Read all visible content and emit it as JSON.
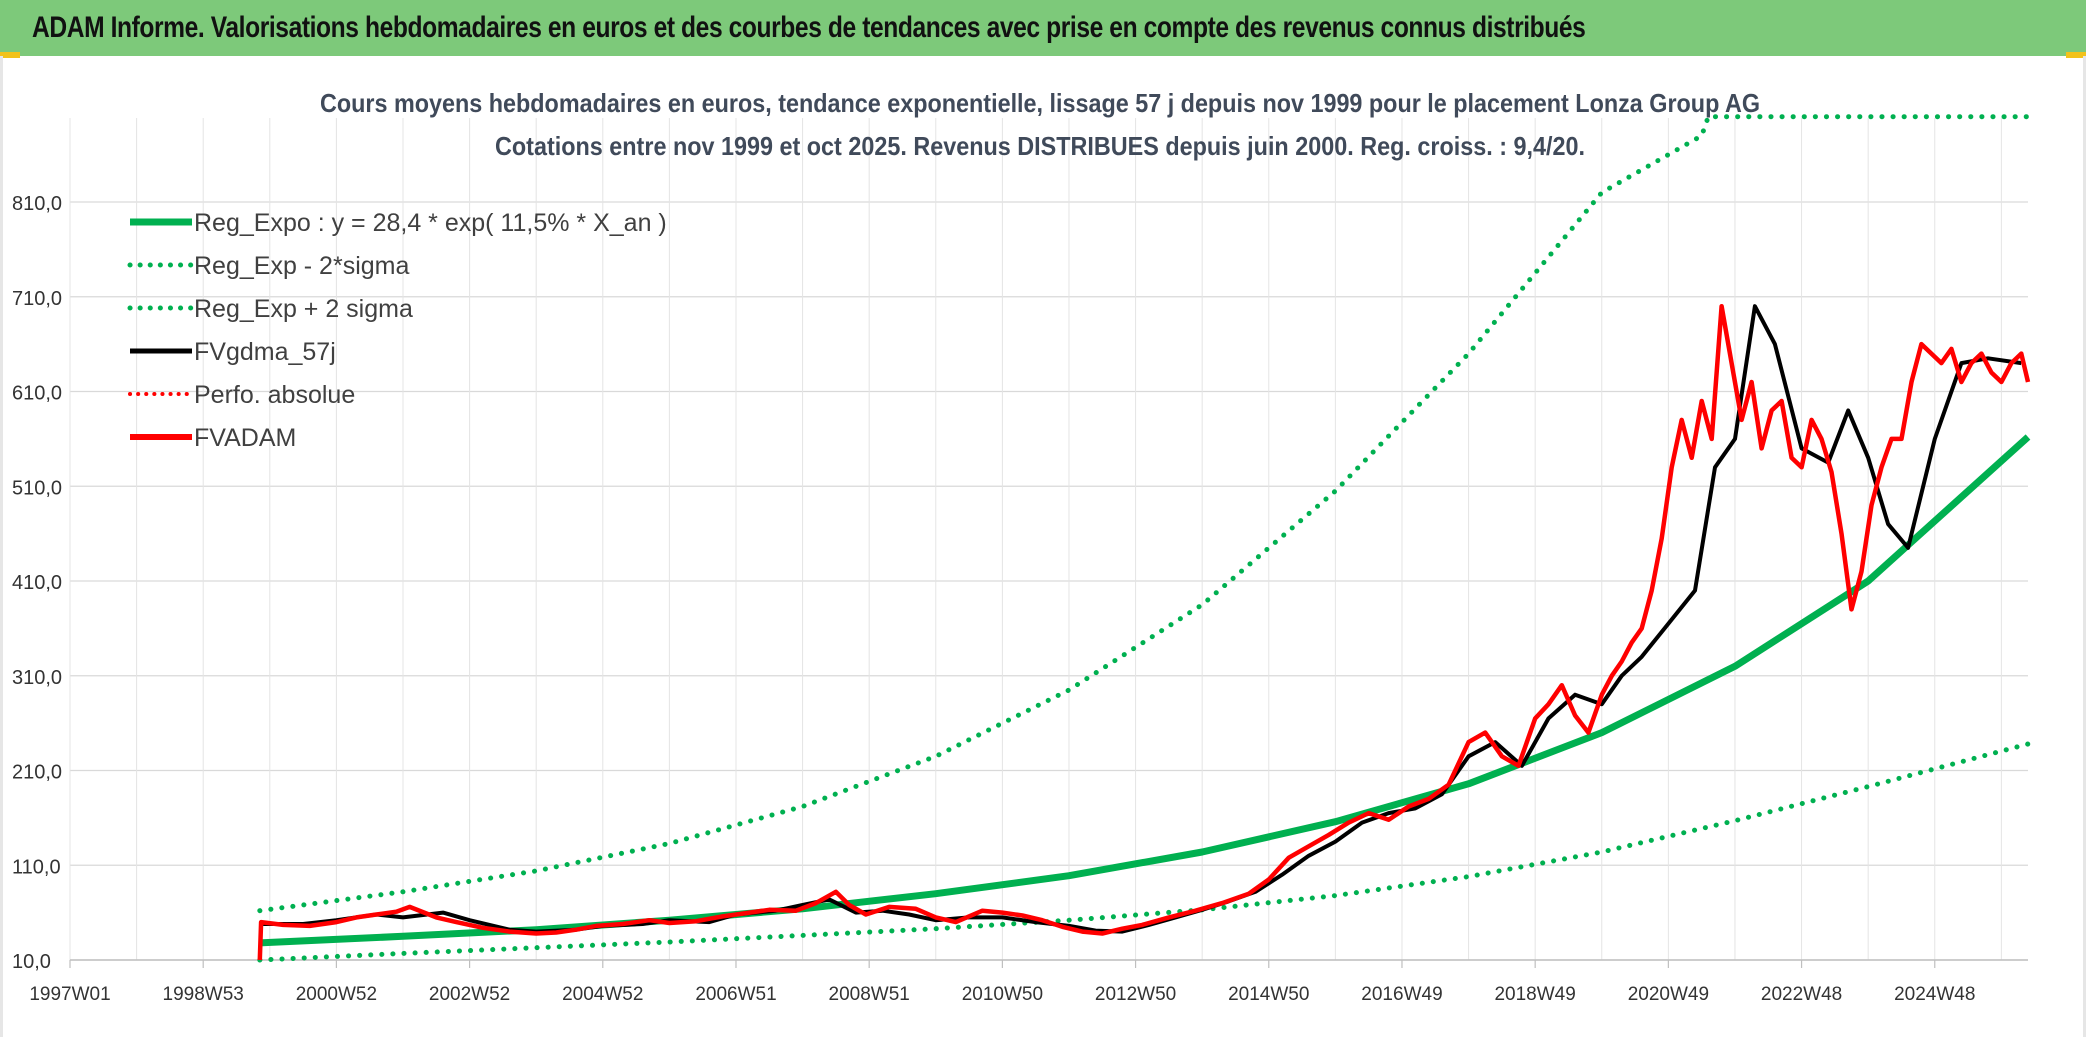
{
  "header": {
    "title": "ADAM Informe. Valorisations hebdomadaires en euros et des courbes de tendances avec prise en compte des revenus connus distribués"
  },
  "colors": {
    "header_bg": "#7dc97a",
    "green": "#00b050",
    "red": "#ff0000",
    "black": "#000000",
    "grid": "#d9d9d9"
  },
  "chart_data": {
    "type": "line",
    "title_line1": "Cours moyens hebdomadaires en euros, tendance exponentielle, lissage 57 j depuis nov 1999 pour le placement Lonza Group AG",
    "title_line2": "Cotations entre nov 1999 et oct 2025. Revenus DISTRIBUES depuis juin 2000. Reg. croiss. : 9,4/20.",
    "x_tick_labels": [
      "1997W01",
      "1998W53",
      "2000W52",
      "2002W52",
      "2004W52",
      "2006W51",
      "2008W51",
      "2010W50",
      "2012W50",
      "2014W50",
      "2016W49",
      "2018W49",
      "2020W49",
      "2022W48",
      "2024W48"
    ],
    "x_tick_years": [
      1997.0,
      1999.0,
      2001.0,
      2003.0,
      2005.0,
      2007.0,
      2009.0,
      2011.0,
      2013.0,
      2015.0,
      2017.0,
      2019.0,
      2021.0,
      2023.0,
      2025.0
    ],
    "xlim": [
      1997.0,
      2026.4
    ],
    "y_tick_labels": [
      "10,0",
      "110,0",
      "210,0",
      "310,0",
      "410,0",
      "510,0",
      "610,0",
      "710,0",
      "810,0"
    ],
    "y_ticks": [
      10,
      110,
      210,
      310,
      410,
      510,
      610,
      710,
      810
    ],
    "ylim": [
      10,
      900
    ],
    "legend": [
      {
        "label": "Reg_Expo : y = 28,4 * exp( 11,5% *  X_an )",
        "style": "solid-green"
      },
      {
        "label": "Reg_Exp - 2*sigma",
        "style": "dotted-green"
      },
      {
        "label": "Reg_Exp + 2 sigma",
        "style": "dotted-green"
      },
      {
        "label": "FVgdma_57j",
        "style": "solid-black"
      },
      {
        "label": "Perfo. absolue",
        "style": "dotted-red"
      },
      {
        "label": "FVADAM",
        "style": "solid-red"
      }
    ],
    "series": [
      {
        "name": "Reg_Expo",
        "x": [
          1999.85,
          2002,
          2004,
          2006,
          2008,
          2010,
          2012,
          2014,
          2016,
          2018,
          2020,
          2022,
          2024,
          2026.4
        ],
        "y": [
          28,
          35,
          42,
          52,
          64,
          80,
          99,
          124,
          156,
          196,
          250,
          320,
          410,
          562
        ]
      },
      {
        "name": "Reg_Exp - 2*sigma",
        "x": [
          1999.85,
          2002,
          2004,
          2006,
          2008,
          2010,
          2012,
          2014,
          2016,
          2018,
          2020,
          2022,
          2024,
          2026.4
        ],
        "y": [
          10,
          17,
          23,
          29,
          36,
          43,
          52,
          63,
          78,
          98,
          124,
          157,
          193,
          238
        ]
      },
      {
        "name": "Reg_Exp + 2 sigma",
        "x": [
          1999.85,
          2002,
          2004,
          2006,
          2008,
          2010,
          2012,
          2014,
          2016,
          2018,
          2020,
          2021.5,
          2021.6,
          2026.4
        ],
        "y": [
          62,
          82,
          104,
          133,
          172,
          225,
          295,
          385,
          505,
          650,
          820,
          880,
          900,
          900
        ]
      },
      {
        "name": "FVgdma_57j",
        "x": [
          1999.9,
          2000.5,
          2001,
          2001.6,
          2002,
          2002.6,
          2003,
          2003.6,
          2004,
          2004.6,
          2005,
          2005.6,
          2006,
          2006.6,
          2007,
          2007.6,
          2008,
          2008.4,
          2008.8,
          2009.2,
          2009.6,
          2010,
          2010.5,
          2011,
          2011.5,
          2012,
          2012.4,
          2012.8,
          2013.2,
          2013.6,
          2014,
          2014.4,
          2014.8,
          2015.2,
          2015.6,
          2016,
          2016.4,
          2016.8,
          2017.2,
          2017.6,
          2018,
          2018.4,
          2018.8,
          2019.2,
          2019.6,
          2020,
          2020.3,
          2020.6,
          2021,
          2021.4,
          2021.7,
          2022,
          2022.3,
          2022.6,
          2023,
          2023.4,
          2023.7,
          2024,
          2024.3,
          2024.6,
          2025,
          2025.4,
          2025.8,
          2026.3
        ],
        "y": [
          48,
          48,
          52,
          58,
          55,
          60,
          52,
          42,
          40,
          42,
          46,
          48,
          52,
          50,
          58,
          62,
          68,
          74,
          60,
          62,
          58,
          52,
          55,
          55,
          50,
          46,
          41,
          40,
          47,
          55,
          63,
          72,
          82,
          100,
          120,
          135,
          155,
          165,
          170,
          185,
          225,
          240,
          215,
          265,
          290,
          280,
          310,
          330,
          365,
          400,
          530,
          560,
          700,
          660,
          550,
          535,
          590,
          540,
          470,
          445,
          560,
          640,
          645,
          640
        ]
      },
      {
        "name": "FVADAM",
        "x": [
          1999.85,
          1999.87,
          2000.2,
          2000.6,
          2001,
          2001.3,
          2001.6,
          2001.9,
          2002.1,
          2002.5,
          2002.8,
          2003.2,
          2003.6,
          2004,
          2004.3,
          2004.6,
          2004.9,
          2005.3,
          2005.7,
          2006,
          2006.4,
          2006.8,
          2007.1,
          2007.5,
          2007.9,
          2008.2,
          2008.5,
          2008.7,
          2008.95,
          2009.3,
          2009.7,
          2010,
          2010.3,
          2010.7,
          2011,
          2011.3,
          2011.6,
          2011.9,
          2012.2,
          2012.5,
          2012.8,
          2013.1,
          2013.5,
          2013.9,
          2014.3,
          2014.7,
          2015,
          2015.3,
          2015.6,
          2015.9,
          2016.2,
          2016.5,
          2016.8,
          2017.1,
          2017.4,
          2017.7,
          2018,
          2018.25,
          2018.5,
          2018.75,
          2019,
          2019.2,
          2019.4,
          2019.6,
          2019.8,
          2020,
          2020.15,
          2020.3,
          2020.45,
          2020.6,
          2020.75,
          2020.9,
          2021.05,
          2021.2,
          2021.35,
          2021.5,
          2021.65,
          2021.8,
          2021.95,
          2022.1,
          2022.25,
          2022.4,
          2022.55,
          2022.7,
          2022.85,
          2023.0,
          2023.15,
          2023.3,
          2023.45,
          2023.6,
          2023.75,
          2023.9,
          2024.05,
          2024.2,
          2024.35,
          2024.5,
          2024.65,
          2024.8,
          2024.95,
          2025.1,
          2025.25,
          2025.4,
          2025.55,
          2025.7,
          2025.85,
          2026.0,
          2026.15,
          2026.3,
          2026.4
        ],
        "y": [
          10,
          50,
          47,
          46,
          50,
          55,
          58,
          61,
          66,
          55,
          50,
          44,
          40,
          38,
          39,
          42,
          46,
          48,
          52,
          49,
          51,
          56,
          59,
          63,
          62,
          70,
          82,
          68,
          58,
          66,
          64,
          55,
          50,
          62,
          60,
          57,
          52,
          45,
          40,
          38,
          43,
          47,
          55,
          62,
          70,
          80,
          95,
          118,
          130,
          142,
          155,
          165,
          158,
          172,
          180,
          195,
          240,
          250,
          225,
          215,
          265,
          280,
          300,
          268,
          250,
          290,
          310,
          325,
          345,
          360,
          400,
          455,
          530,
          580,
          540,
          600,
          560,
          700,
          640,
          580,
          620,
          550,
          590,
          600,
          540,
          530,
          580,
          560,
          525,
          460,
          380,
          420,
          490,
          530,
          560,
          560,
          620,
          660,
          650,
          640,
          655,
          620,
          640,
          650,
          630,
          620,
          640,
          650,
          620
        ]
      }
    ]
  }
}
